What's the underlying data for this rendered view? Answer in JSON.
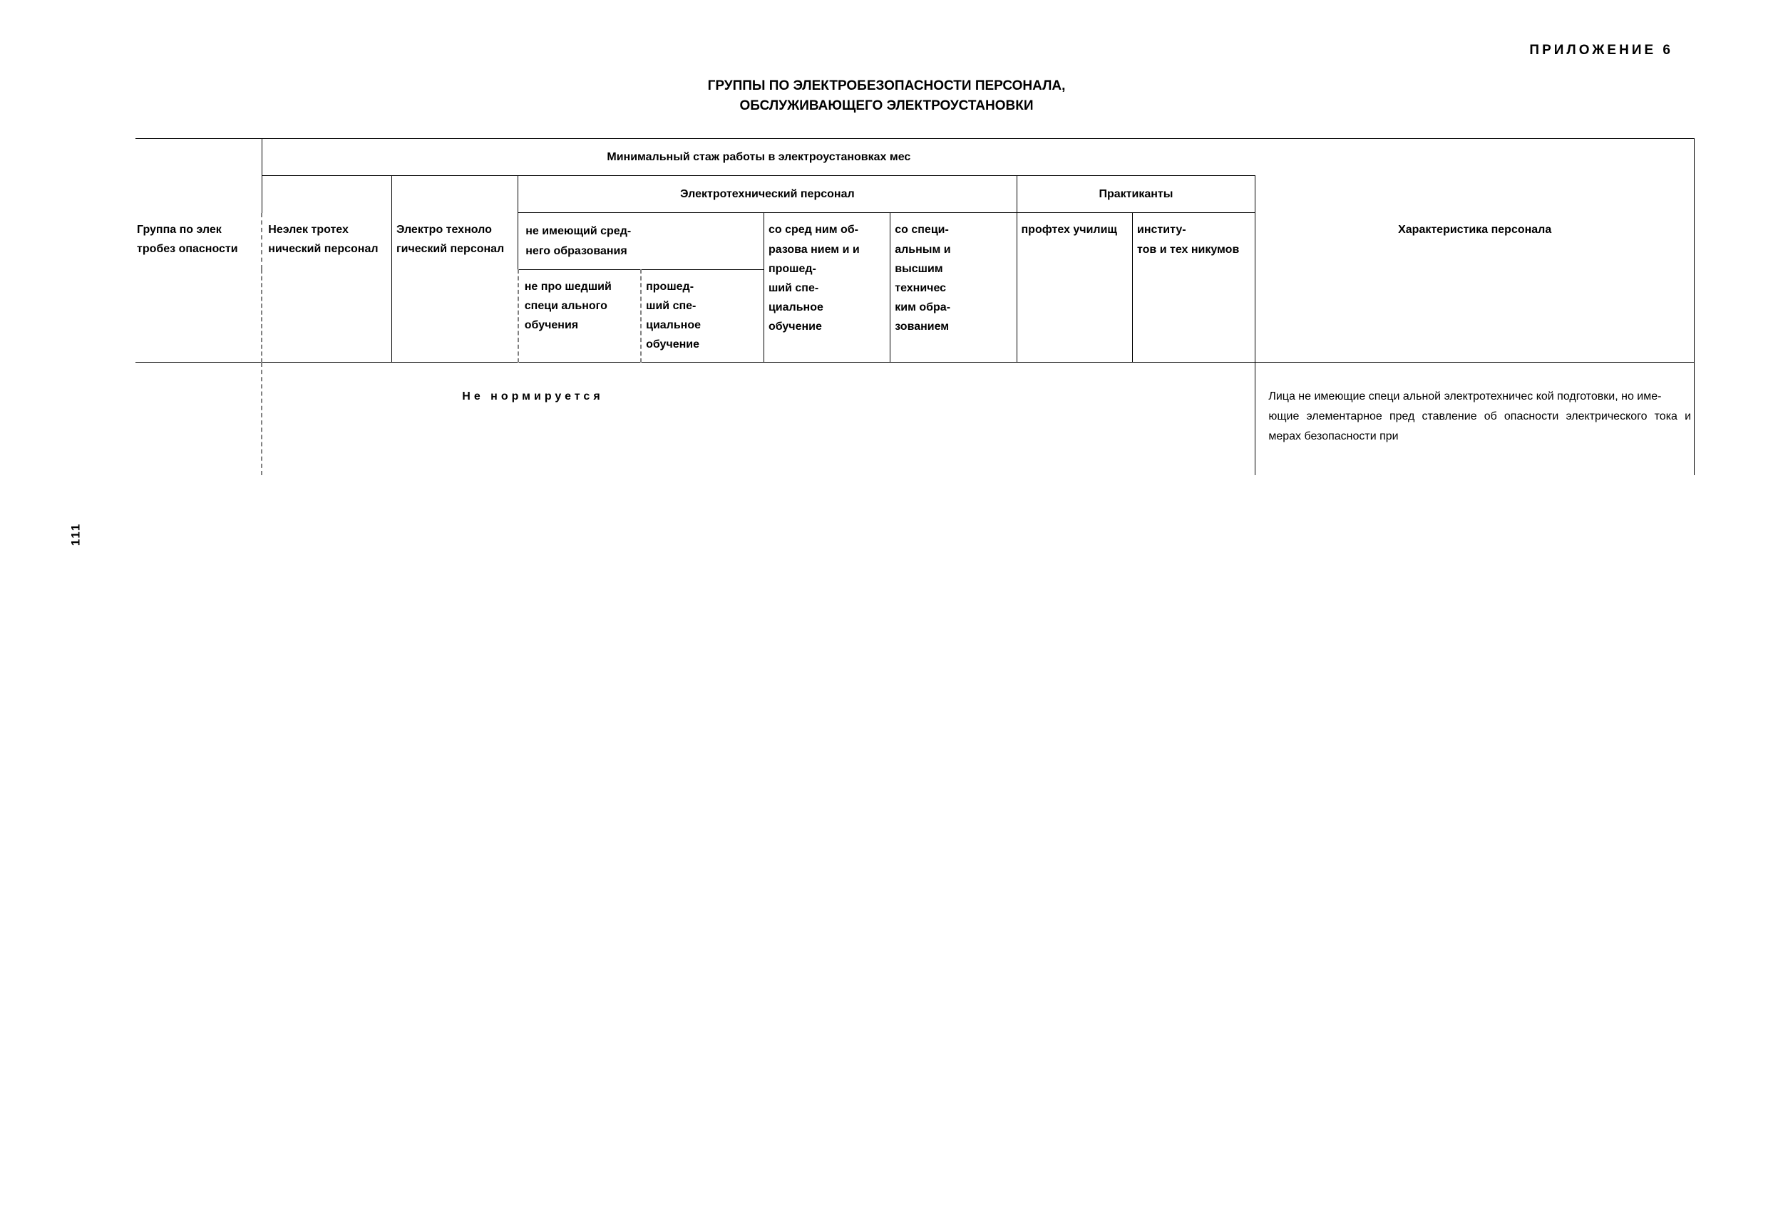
{
  "appendix_label": "ПРИЛОЖЕНИЕ 6",
  "title": "ГРУППЫ ПО ЭЛЕКТРОБЕЗОПАСНОСТИ ПЕРСОНАЛА,",
  "subtitle": "ОБСЛУЖИВАЮЩЕГО ЭЛЕКТРОУСТАНОВКИ",
  "page_number": "111",
  "headers": {
    "main_span": "Минимальный стаж работы в электроустановках  мес",
    "sub_electro": "Электротехнический персонал",
    "sub_praktik": "Практиканты",
    "sub_neimeyush": "не имеющий сред-\nнего образования",
    "col_group": "Группа по элек тробез опасности",
    "col_nezlek": "Неэлек тротех нический персонал",
    "col_elektro": "Электро техноло гический персонал",
    "col_nepro": "не про шедший специ ального обучения",
    "col_proshed": "прошед-\nший спе-\nциальное\nобучение",
    "col_sosred": "со сред ним об-\nразова нием и и прошед-\nший спе-\nциальное\nобучение",
    "col_sospec": "со специ-\nальным и\nвысшим\nтехничес\nким обра-\nзованием",
    "col_proftech": "профтех училищ",
    "col_instit": "институ-\nтов и тех никумов",
    "col_char": "Характеристика персонала"
  },
  "row1": {
    "data_label": "Не  нормируется",
    "characteristic": "Лица  не имеющие специ альной электротехничес кой подготовки, но име-\nющие элементарное пред ставление об опасности электрического тока и мерах безопасности при"
  }
}
